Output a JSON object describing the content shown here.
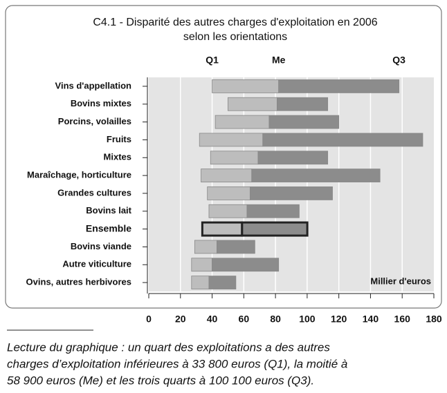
{
  "chart_data": {
    "type": "floating_box",
    "title": [
      "C4.1 - Disparité des autres charges d'exploitation en 2006",
      "selon les orientations"
    ],
    "categories": [
      "Vins d'appellation",
      "Bovins mixtes",
      "Porcins, volailles",
      "Fruits",
      "Mixtes",
      "Maraîchage, horticulture",
      "Grandes cultures",
      "Bovins lait",
      "Ensemble",
      "Bovins viande",
      "Autre viticulture",
      "Ovins, autres herbivores"
    ],
    "series": [
      {
        "name": "Q1",
        "color": "#bdbdbd",
        "values": [
          40,
          50,
          42,
          32,
          39,
          33,
          37,
          38,
          33.8,
          29,
          27,
          27
        ]
      },
      {
        "name": "Me",
        "color": "#8c8c8c",
        "values": [
          82,
          81,
          76,
          72,
          69,
          65,
          64,
          62,
          58.9,
          43,
          40,
          38
        ]
      },
      {
        "name": "Q3",
        "values": [
          158,
          113,
          120,
          173,
          113,
          146,
          116,
          95,
          100.1,
          67,
          82,
          55
        ]
      }
    ],
    "highlight": "Ensemble",
    "xlim": [
      0,
      180
    ],
    "xticks": [
      0,
      20,
      40,
      60,
      80,
      100,
      120,
      140,
      160,
      180
    ],
    "grid": true,
    "unit_label": "Millier d'euros",
    "caption": [
      "Lecture du graphique : un quart des exploitations a des autres",
      "charges d’exploitation inférieures à 33 800 euros (Q1), la moitié à",
      "58 900 euros (Me) et les trois quarts à 100 100 euros (Q3)."
    ]
  }
}
